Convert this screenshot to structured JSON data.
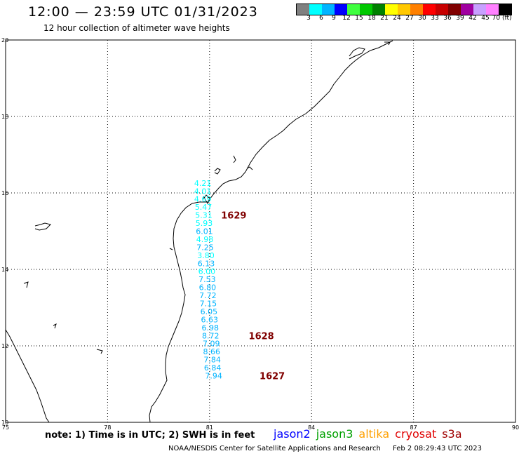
{
  "header": {
    "title": "12:00 — 23:59 UTC 01/31/2023",
    "subtitle": "12 hour collection of altimeter wave heights"
  },
  "legend": {
    "colors": [
      "#808080",
      "#00ffff",
      "#00b4ff",
      "#0000ff",
      "#40ff40",
      "#00c800",
      "#008000",
      "#ffff00",
      "#ffc800",
      "#ff8000",
      "#ff0000",
      "#c80000",
      "#800000",
      "#a000a0",
      "#c8a0ff",
      "#ff80ff",
      "#000000"
    ],
    "labels": [
      "3",
      "6",
      "9",
      "12",
      "15",
      "18",
      "21",
      "24",
      "27",
      "30",
      "33",
      "36",
      "39",
      "42",
      "45",
      "70 (ft)"
    ]
  },
  "axes": {
    "x_ticks": [
      "75",
      "78",
      "81",
      "84",
      "87",
      "90"
    ],
    "y_ticks": [
      "10",
      "12",
      "14",
      "16",
      "18",
      "20"
    ]
  },
  "observations": [
    {
      "lon": 80.8,
      "lat": 16.26,
      "value": "4.21",
      "color": "#00ffff"
    },
    {
      "lon": 80.8,
      "lat": 16.05,
      "value": "4.01",
      "color": "#00ffff"
    },
    {
      "lon": 80.8,
      "lat": 15.84,
      "value": "4.69",
      "color": "#00ffff"
    },
    {
      "lon": 80.82,
      "lat": 15.63,
      "value": "5.47",
      "color": "#00ffff"
    },
    {
      "lon": 80.83,
      "lat": 15.42,
      "value": "5.31",
      "color": "#00ffff"
    },
    {
      "lon": 80.84,
      "lat": 15.21,
      "value": "5.93",
      "color": "#00ffff"
    },
    {
      "lon": 80.85,
      "lat": 15.0,
      "value": "6.01",
      "color": "#00b4ff"
    },
    {
      "lon": 80.86,
      "lat": 14.79,
      "value": "4.98",
      "color": "#00ffff"
    },
    {
      "lon": 80.87,
      "lat": 14.58,
      "value": "7.25",
      "color": "#00b4ff"
    },
    {
      "lon": 80.89,
      "lat": 14.37,
      "value": "3.80",
      "color": "#00ffff"
    },
    {
      "lon": 80.9,
      "lat": 14.16,
      "value": "6.13",
      "color": "#00b4ff"
    },
    {
      "lon": 80.92,
      "lat": 13.95,
      "value": "6.00",
      "color": "#00ffff"
    },
    {
      "lon": 80.93,
      "lat": 13.74,
      "value": "7.53",
      "color": "#00b4ff"
    },
    {
      "lon": 80.94,
      "lat": 13.53,
      "value": "6.80",
      "color": "#00b4ff"
    },
    {
      "lon": 80.95,
      "lat": 13.32,
      "value": "7.72",
      "color": "#00b4ff"
    },
    {
      "lon": 80.96,
      "lat": 13.11,
      "value": "7.15",
      "color": "#00b4ff"
    },
    {
      "lon": 80.98,
      "lat": 12.9,
      "value": "6.05",
      "color": "#00b4ff"
    },
    {
      "lon": 81.0,
      "lat": 12.69,
      "value": "6.63",
      "color": "#00b4ff"
    },
    {
      "lon": 81.02,
      "lat": 12.48,
      "value": "6.98",
      "color": "#00b4ff"
    },
    {
      "lon": 81.03,
      "lat": 12.27,
      "value": "8.72",
      "color": "#00b4ff"
    },
    {
      "lon": 81.05,
      "lat": 12.06,
      "value": "7.09",
      "color": "#00b4ff"
    },
    {
      "lon": 81.06,
      "lat": 11.85,
      "value": "8.66",
      "color": "#00b4ff"
    },
    {
      "lon": 81.08,
      "lat": 11.64,
      "value": "7.84",
      "color": "#00b4ff"
    },
    {
      "lon": 81.09,
      "lat": 11.43,
      "value": "6.84",
      "color": "#00b4ff"
    },
    {
      "lon": 81.12,
      "lat": 11.22,
      "value": "7.94",
      "color": "#00b4ff"
    }
  ],
  "pass_times": [
    {
      "lon": 81.34,
      "lat": 15.42,
      "value": "1629",
      "color": "#800000"
    },
    {
      "lon": 82.15,
      "lat": 12.27,
      "value": "1628",
      "color": "#800000"
    },
    {
      "lon": 82.47,
      "lat": 11.22,
      "value": "1627",
      "color": "#800000"
    }
  ],
  "footer": {
    "note": "note:  1) Time is in UTC; 2) SWH is in feet",
    "satellites": [
      {
        "name": "jason2",
        "color": "#0000ff"
      },
      {
        "name": "jason3",
        "color": "#00a000"
      },
      {
        "name": "altika",
        "color": "#ffa000"
      },
      {
        "name": "cryosat",
        "color": "#e00000"
      },
      {
        "name": "s3a",
        "color": "#a00000"
      }
    ],
    "credit": "NOAA/NESDIS Center for Satellite Applications and Research",
    "timestamp": "Feb  2 08:29:43 UTC 2023"
  }
}
